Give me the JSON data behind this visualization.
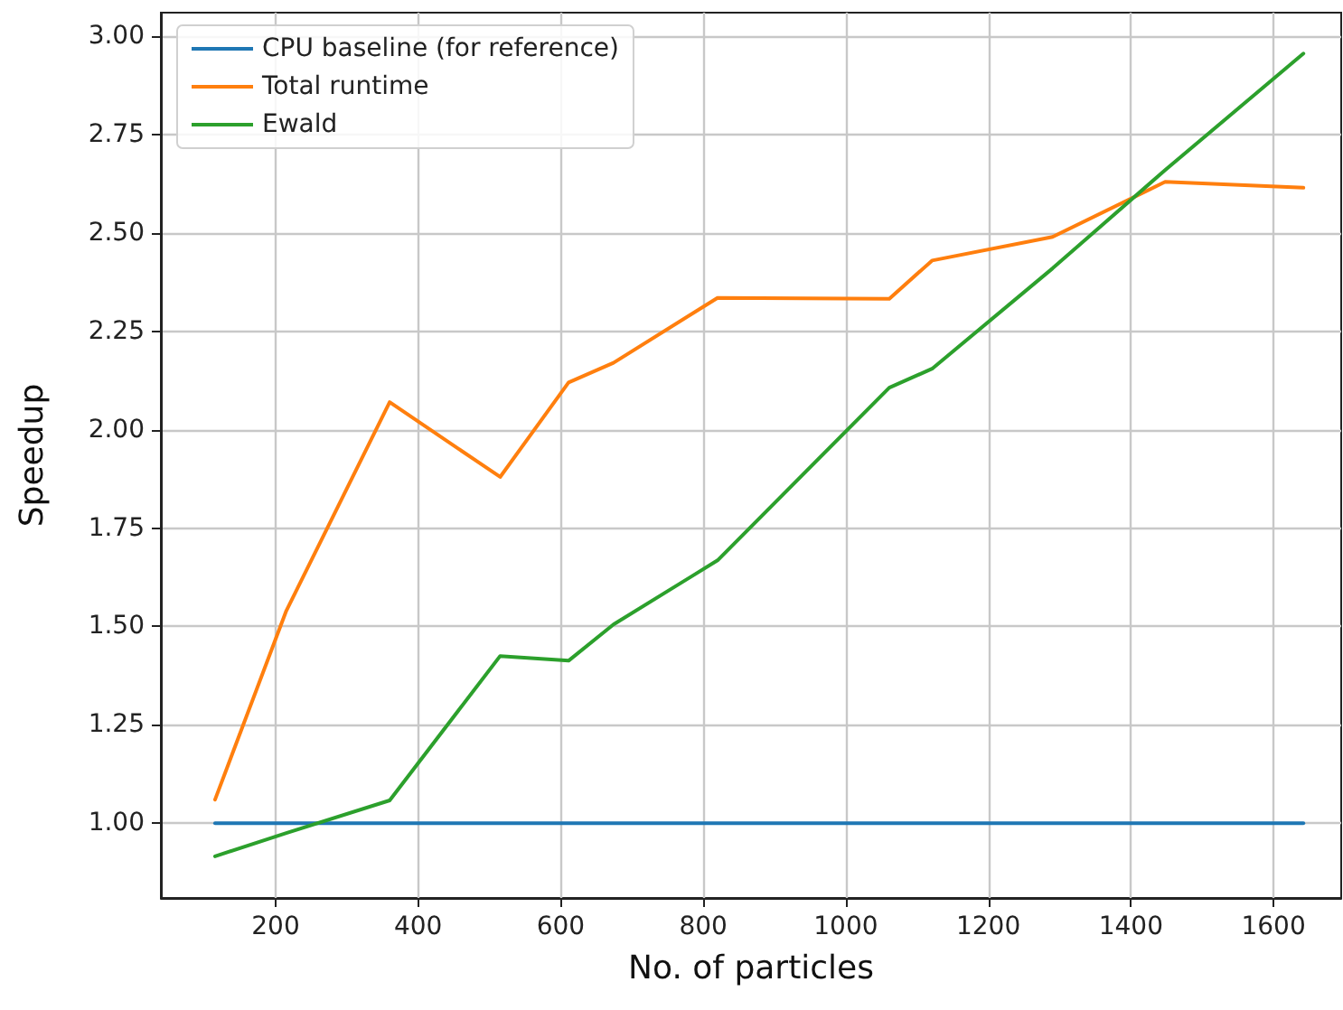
{
  "chart_data": {
    "type": "line",
    "xlabel": "No. of particles",
    "ylabel": "Speedup",
    "x": [
      115,
      215,
      360,
      515,
      611,
      674,
      820,
      1061,
      1121,
      1290,
      1448,
      1642
    ],
    "series": [
      {
        "name": "CPU baseline (for reference)",
        "color": "#1f77b4",
        "values": [
          1,
          1,
          1,
          1,
          1,
          1,
          1,
          1,
          1,
          1,
          1,
          1
        ]
      },
      {
        "name": "Total runtime",
        "color": "#ff7f0e",
        "values": [
          1.06,
          1.54,
          2.07,
          1.88,
          2.12,
          2.17,
          2.335,
          2.333,
          2.43,
          2.49,
          2.63,
          2.615
        ]
      },
      {
        "name": "Ewald",
        "color": "#2ca02c",
        "values": [
          0.916,
          0.975,
          1.058,
          1.425,
          1.413,
          1.505,
          1.668,
          2.107,
          2.155,
          2.41,
          2.66,
          2.956
        ]
      }
    ],
    "xlim": [
      39,
      1695
    ],
    "ylim": [
      0.81,
      3.06
    ],
    "xticks": [
      200,
      400,
      600,
      800,
      1000,
      1200,
      1400,
      1600
    ],
    "yticks": [
      {
        "value": 1,
        "label": "1.00"
      },
      {
        "value": 1.25,
        "label": "1.25"
      },
      {
        "value": 1.5,
        "label": "1.50"
      },
      {
        "value": 1.75,
        "label": "1.75"
      },
      {
        "value": 2,
        "label": "2.00"
      },
      {
        "value": 2.25,
        "label": "2.25"
      },
      {
        "value": 2.5,
        "label": "2.50"
      },
      {
        "value": 2.75,
        "label": "2.75"
      },
      {
        "value": 3,
        "label": "3.00"
      }
    ],
    "grid": true,
    "legend": "top left",
    "marker": "none",
    "line_style": "solid"
  }
}
